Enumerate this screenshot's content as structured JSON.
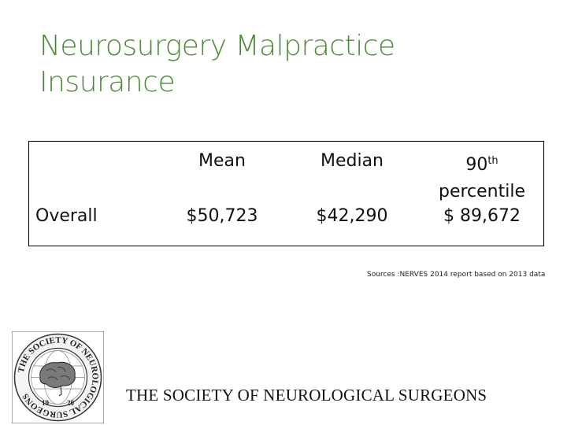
{
  "title": "Neurosurgery Malpractice Insurance",
  "table": {
    "columns": [
      "Mean",
      "Median",
      "90th percentile"
    ],
    "pct_number": "90",
    "pct_sup": "th",
    "pct_word": "percentile",
    "rows": [
      {
        "label": "Overall",
        "values": [
          "$50,723",
          "$42,290",
          "$ 89,672"
        ]
      }
    ]
  },
  "source": "Sources :NERVES 2014 report based on 2013 data",
  "logo": {
    "ring_text": "THE SOCIETY OF NEUROLOGICAL SURGEONS",
    "year_left": "19",
    "year_right": "20"
  },
  "society_name": "THE SOCIETY OF NEUROLOGICAL SURGEONS",
  "colors": {
    "title": "#4e8a3a"
  }
}
